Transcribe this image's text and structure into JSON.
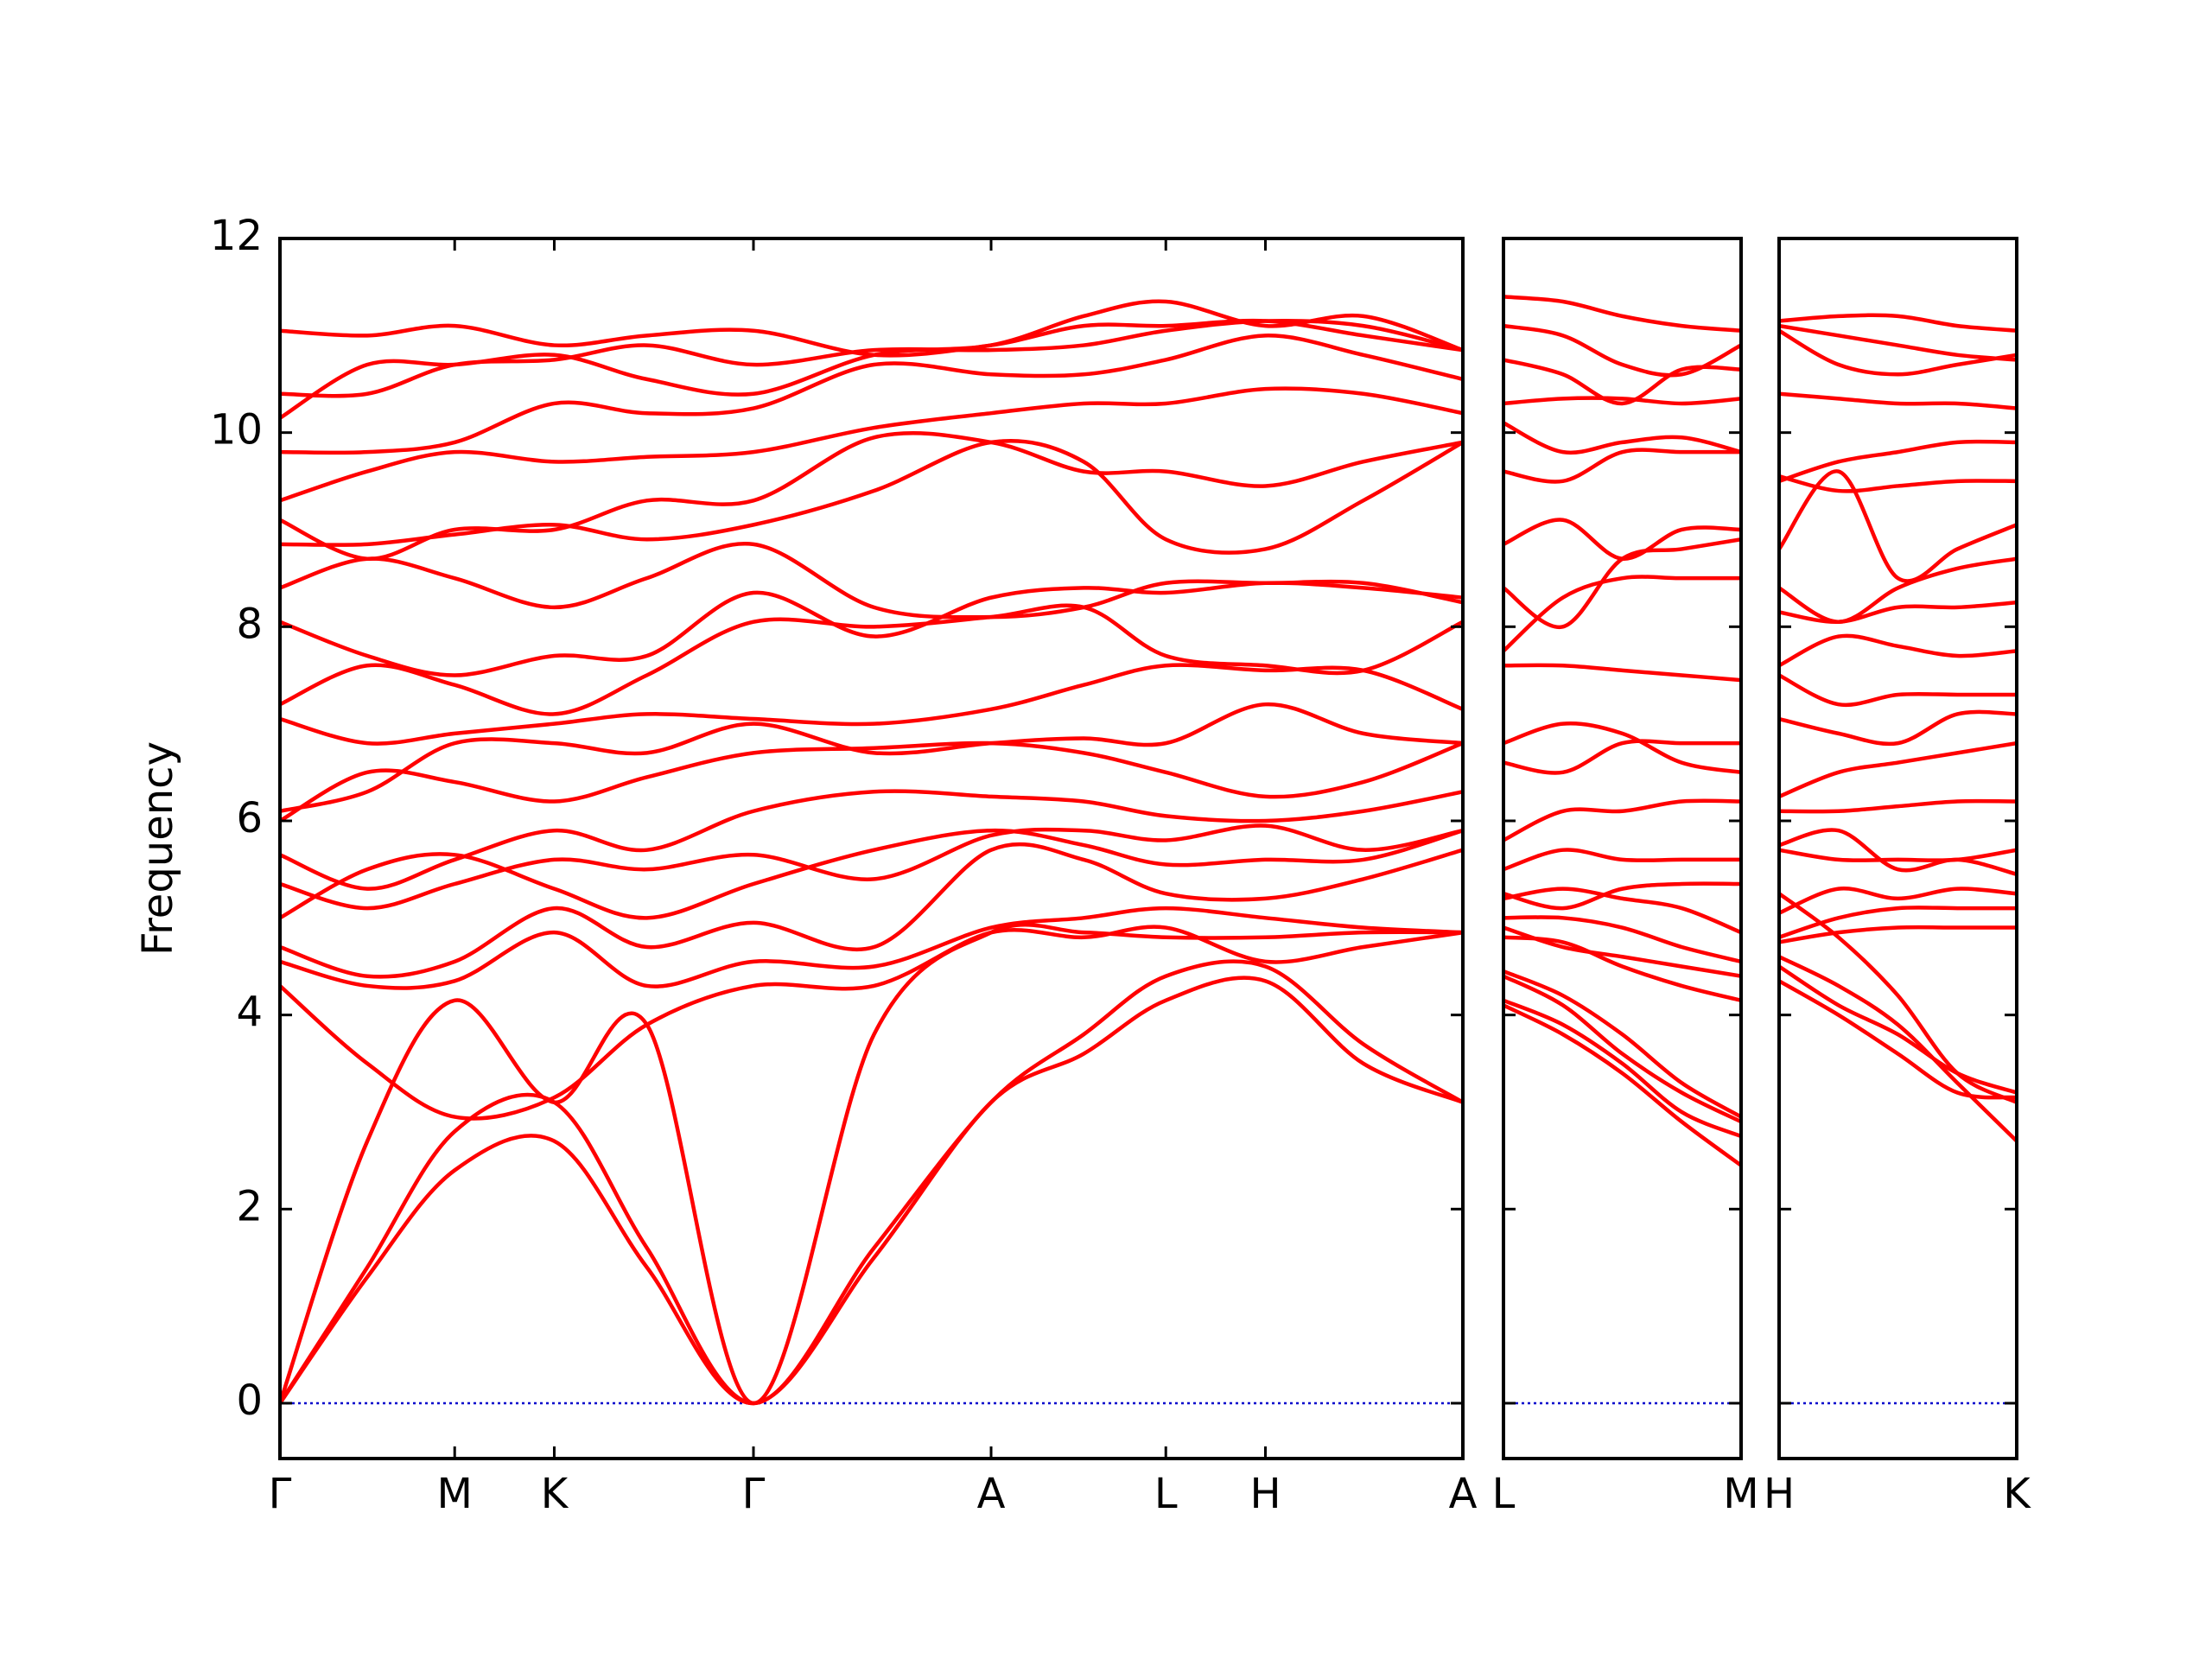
{
  "chart_data": [
    {
      "type": "line",
      "ylabel": "Frequency",
      "color": "#ff0000",
      "zero_line_color": "#0000cc",
      "ylim": [
        -0.57,
        12
      ],
      "yticks": [
        0,
        2,
        4,
        6,
        8,
        10,
        12
      ],
      "xlim": [
        0,
        6.77
      ],
      "xticks": [
        {
          "value": 0,
          "label": "Γ"
        },
        {
          "value": 1.0,
          "label": "M"
        },
        {
          "value": 1.57,
          "label": "K"
        },
        {
          "value": 2.71,
          "label": "Γ"
        },
        {
          "value": 4.07,
          "label": "A"
        },
        {
          "value": 5.07,
          "label": "L"
        },
        {
          "value": 5.64,
          "label": "H"
        },
        {
          "value": 6.77,
          "label": "A"
        }
      ],
      "x": [
        0,
        0.5,
        1.0,
        1.57,
        2.1,
        2.71,
        3.4,
        4.07,
        4.6,
        5.07,
        5.64,
        6.2,
        6.77
      ],
      "series": [
        {
          "values": [
            0,
            1.3,
            2.4,
            2.7,
            1.4,
            0,
            1.5,
            3.1,
            3.6,
            4.15,
            4.35,
            3.5,
            3.1
          ]
        },
        {
          "values": [
            0,
            1.4,
            2.8,
            3.1,
            1.6,
            0,
            1.6,
            3.1,
            3.8,
            4.4,
            4.5,
            3.7,
            3.1
          ]
        },
        {
          "values": [
            0,
            2.7,
            4.15,
            3.1,
            3.9,
            0,
            3.8,
            4.85,
            4.85,
            4.8,
            4.8,
            4.85,
            4.85
          ]
        },
        {
          "values": [
            4.3,
            3.5,
            2.95,
            3.15,
            3.9,
            4.3,
            4.3,
            4.85,
            4.8,
            4.9,
            4.55,
            4.7,
            4.85
          ]
        },
        {
          "values": [
            4.55,
            4.3,
            4.35,
            4.85,
            4.3,
            4.55,
            4.5,
            4.9,
            5.0,
            5.1,
            5.0,
            4.9,
            4.85
          ]
        },
        {
          "values": [
            4.7,
            4.4,
            4.55,
            5.1,
            4.7,
            4.95,
            4.7,
            5.7,
            5.6,
            5.25,
            5.2,
            5.4,
            5.7
          ]
        },
        {
          "values": [
            5.0,
            5.5,
            5.65,
            5.3,
            5.0,
            5.35,
            5.7,
            5.9,
            5.75,
            5.55,
            5.6,
            5.6,
            5.9
          ]
        },
        {
          "values": [
            5.35,
            5.1,
            5.35,
            5.6,
            5.5,
            5.65,
            5.4,
            5.85,
            5.9,
            5.8,
            5.95,
            5.7,
            5.9
          ]
        },
        {
          "values": [
            5.65,
            5.3,
            5.6,
            5.9,
            5.7,
            6.1,
            6.3,
            6.25,
            6.2,
            6.05,
            6.0,
            6.1,
            6.3
          ]
        },
        {
          "values": [
            6.0,
            6.5,
            6.4,
            6.2,
            6.45,
            6.7,
            6.75,
            6.8,
            6.7,
            6.5,
            6.25,
            6.4,
            6.8
          ]
        },
        {
          "values": [
            6.1,
            6.3,
            6.8,
            6.8,
            6.7,
            7.0,
            6.7,
            6.8,
            6.85,
            6.8,
            7.2,
            6.9,
            6.8
          ]
        },
        {
          "values": [
            7.05,
            6.8,
            6.9,
            7.0,
            7.1,
            7.05,
            7.0,
            7.15,
            7.4,
            7.6,
            7.55,
            7.55,
            7.15
          ]
        },
        {
          "values": [
            7.2,
            7.6,
            7.4,
            7.1,
            7.5,
            8.05,
            8.0,
            8.1,
            8.2,
            7.7,
            7.6,
            7.55,
            8.05
          ]
        },
        {
          "values": [
            8.05,
            7.7,
            7.5,
            7.7,
            7.7,
            8.35,
            7.9,
            8.3,
            8.4,
            8.35,
            8.45,
            8.4,
            8.3
          ]
        },
        {
          "values": [
            8.4,
            8.7,
            8.5,
            8.2,
            8.5,
            8.85,
            8.2,
            8.1,
            8.2,
            8.45,
            8.45,
            8.45,
            8.25
          ]
        },
        {
          "values": [
            8.85,
            8.85,
            8.95,
            9.05,
            8.9,
            9.05,
            9.4,
            9.9,
            9.7,
            8.9,
            8.8,
            9.3,
            9.9
          ]
        },
        {
          "values": [
            9.1,
            8.7,
            9.0,
            9.0,
            9.3,
            9.3,
            9.95,
            9.9,
            9.6,
            9.6,
            9.45,
            9.7,
            9.9
          ]
        },
        {
          "values": [
            9.3,
            9.6,
            9.8,
            9.7,
            9.75,
            9.8,
            10.05,
            10.2,
            10.3,
            10.3,
            10.45,
            10.4,
            10.2
          ]
        },
        {
          "values": [
            9.8,
            9.8,
            9.9,
            10.3,
            10.2,
            10.25,
            10.7,
            10.6,
            10.6,
            10.75,
            11.0,
            10.8,
            10.55
          ]
        },
        {
          "values": [
            10.15,
            10.7,
            10.7,
            10.8,
            10.55,
            10.4,
            10.8,
            10.9,
            11.2,
            11.35,
            11.1,
            11.2,
            10.85
          ]
        },
        {
          "values": [
            10.4,
            10.4,
            10.7,
            10.75,
            10.9,
            10.7,
            10.85,
            10.85,
            10.9,
            11.05,
            11.15,
            11.1,
            10.85
          ]
        },
        {
          "values": [
            11.05,
            11.0,
            11.1,
            10.9,
            11.0,
            11.05,
            10.8,
            10.9,
            11.1,
            11.1,
            11.15,
            11.0,
            10.85
          ]
        }
      ]
    },
    {
      "type": "line",
      "color": "#ff0000",
      "zero_line_color": "#0000cc",
      "xlim": [
        0,
        1.36
      ],
      "xticks": [
        {
          "value": 0,
          "label": "L"
        },
        {
          "value": 1.36,
          "label": "M"
        }
      ],
      "x": [
        0,
        0.34,
        0.68,
        1.02,
        1.36
      ],
      "series": [
        {
          "values": [
            4.1,
            3.8,
            3.4,
            2.9,
            2.45
          ]
        },
        {
          "values": [
            4.15,
            3.9,
            3.5,
            3.0,
            2.75
          ]
        },
        {
          "values": [
            4.4,
            4.1,
            3.6,
            3.2,
            2.9
          ]
        },
        {
          "values": [
            4.45,
            4.2,
            3.8,
            3.3,
            2.95
          ]
        },
        {
          "values": [
            4.8,
            4.75,
            4.5,
            4.3,
            4.15
          ]
        },
        {
          "values": [
            4.9,
            4.7,
            4.6,
            4.5,
            4.4
          ]
        },
        {
          "values": [
            5.0,
            5.0,
            4.9,
            4.7,
            4.55
          ]
        },
        {
          "values": [
            5.2,
            5.3,
            5.2,
            5.1,
            4.85
          ]
        },
        {
          "values": [
            5.25,
            5.1,
            5.3,
            5.35,
            5.35
          ]
        },
        {
          "values": [
            5.5,
            5.7,
            5.6,
            5.6,
            5.6
          ]
        },
        {
          "values": [
            5.8,
            6.1,
            6.1,
            6.2,
            6.2
          ]
        },
        {
          "values": [
            6.6,
            6.5,
            6.8,
            6.8,
            6.8
          ]
        },
        {
          "values": [
            6.8,
            7.0,
            6.9,
            6.6,
            6.5
          ]
        },
        {
          "values": [
            7.6,
            7.6,
            7.55,
            7.5,
            7.45
          ]
        },
        {
          "values": [
            7.75,
            8.3,
            8.5,
            8.5,
            8.5
          ]
        },
        {
          "values": [
            8.4,
            8.0,
            8.7,
            8.8,
            8.9
          ]
        },
        {
          "values": [
            8.85,
            9.1,
            8.7,
            9.0,
            9.0
          ]
        },
        {
          "values": [
            9.6,
            9.5,
            9.8,
            9.8,
            9.8
          ]
        },
        {
          "values": [
            10.1,
            9.8,
            9.9,
            9.95,
            9.8
          ]
        },
        {
          "values": [
            10.3,
            10.35,
            10.35,
            10.3,
            10.35
          ]
        },
        {
          "values": [
            10.75,
            10.6,
            10.3,
            10.65,
            10.65
          ]
        },
        {
          "values": [
            11.1,
            11.0,
            10.7,
            10.6,
            10.9
          ]
        },
        {
          "values": [
            11.4,
            11.35,
            11.2,
            11.1,
            11.05
          ]
        }
      ]
    },
    {
      "type": "line",
      "color": "#ff0000",
      "zero_line_color": "#0000cc",
      "xlim": [
        0,
        1.36
      ],
      "xticks": [
        {
          "value": 0,
          "label": "H"
        },
        {
          "value": 1.36,
          "label": "K"
        }
      ],
      "x": [
        0,
        0.34,
        0.68,
        1.02,
        1.36
      ],
      "series": [
        {
          "values": [
            4.35,
            4.0,
            3.6,
            3.2,
            3.15
          ]
        },
        {
          "values": [
            4.5,
            4.1,
            3.8,
            3.4,
            3.2
          ]
        },
        {
          "values": [
            4.6,
            4.3,
            3.9,
            3.3,
            2.7
          ]
        },
        {
          "values": [
            5.25,
            4.8,
            4.2,
            3.4,
            3.1
          ]
        },
        {
          "values": [
            4.75,
            4.85,
            4.9,
            4.9,
            4.9
          ]
        },
        {
          "values": [
            4.8,
            5.0,
            5.1,
            5.1,
            5.1
          ]
        },
        {
          "values": [
            5.05,
            5.3,
            5.2,
            5.3,
            5.25
          ]
        },
        {
          "values": [
            5.7,
            5.6,
            5.6,
            5.6,
            5.7
          ]
        },
        {
          "values": [
            5.75,
            5.9,
            5.5,
            5.6,
            5.45
          ]
        },
        {
          "values": [
            6.1,
            6.1,
            6.15,
            6.2,
            6.2
          ]
        },
        {
          "values": [
            6.25,
            6.5,
            6.6,
            6.7,
            6.8
          ]
        },
        {
          "values": [
            7.05,
            6.9,
            6.8,
            7.1,
            7.1
          ]
        },
        {
          "values": [
            7.5,
            7.2,
            7.3,
            7.3,
            7.3
          ]
        },
        {
          "values": [
            7.6,
            7.9,
            7.8,
            7.7,
            7.75
          ]
        },
        {
          "values": [
            8.15,
            8.05,
            8.2,
            8.2,
            8.25
          ]
        },
        {
          "values": [
            8.4,
            8.05,
            8.4,
            8.6,
            8.7
          ]
        },
        {
          "values": [
            8.8,
            9.6,
            8.5,
            8.8,
            9.05
          ]
        },
        {
          "values": [
            9.55,
            9.4,
            9.45,
            9.5,
            9.5
          ]
        },
        {
          "values": [
            9.5,
            9.7,
            9.8,
            9.9,
            9.9
          ]
        },
        {
          "values": [
            10.4,
            10.35,
            10.3,
            10.3,
            10.25
          ]
        },
        {
          "values": [
            11.05,
            10.7,
            10.6,
            10.7,
            10.8
          ]
        },
        {
          "values": [
            11.1,
            11.0,
            10.9,
            10.8,
            10.75
          ]
        },
        {
          "values": [
            11.15,
            11.2,
            11.2,
            11.1,
            11.05
          ]
        }
      ]
    }
  ]
}
